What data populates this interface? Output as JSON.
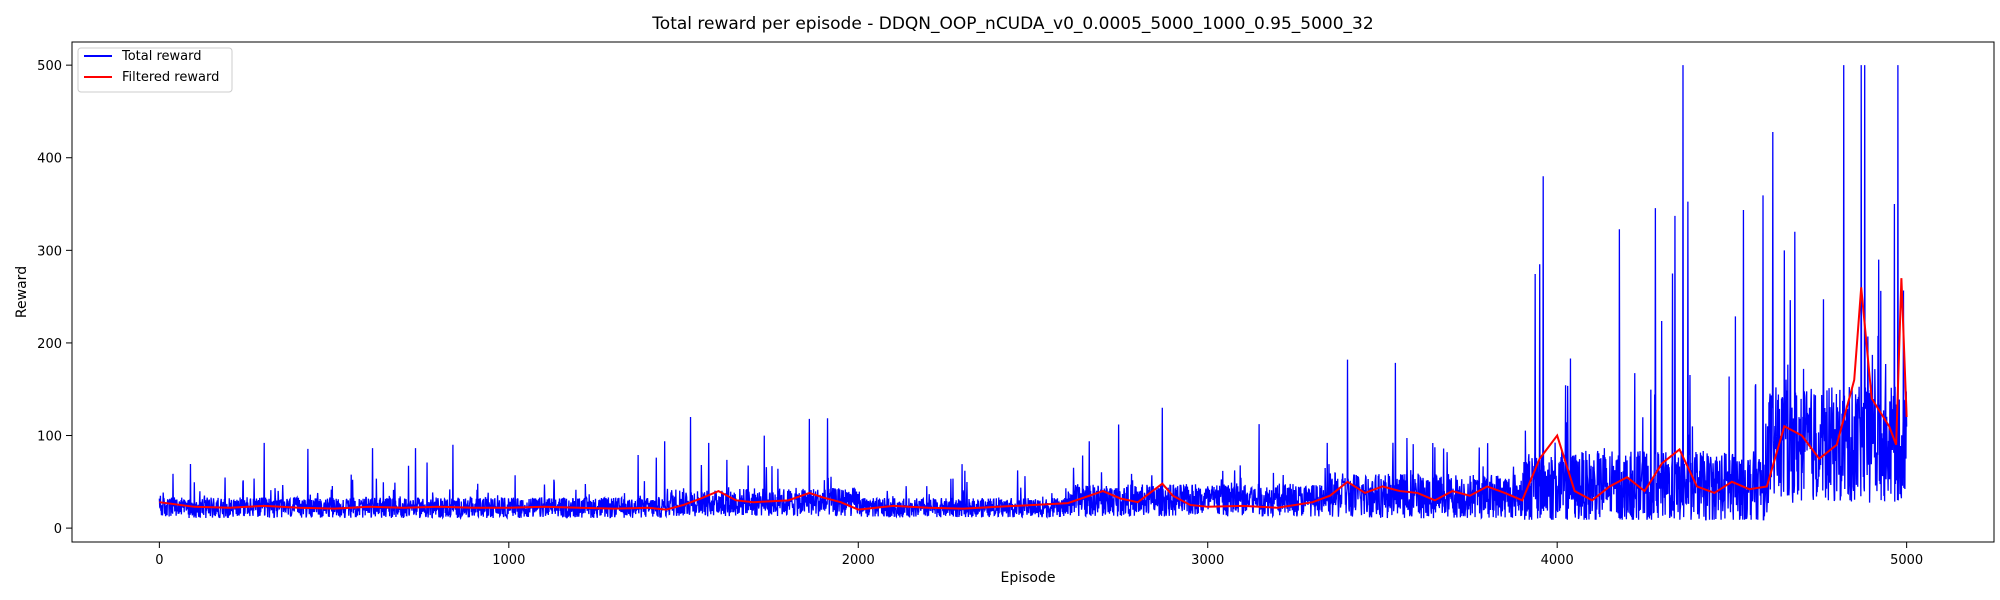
{
  "chart_data": {
    "type": "line",
    "title": "Total reward per episode - DDQN_OOP_nCUDA_v0_0.0005_5000_1000_0.95_5000_32",
    "xlabel": "Episode",
    "ylabel": "Reward",
    "xlim": [
      -250,
      5250
    ],
    "ylim": [
      -15,
      525
    ],
    "xticks": [
      0,
      1000,
      2000,
      3000,
      4000,
      5000
    ],
    "yticks": [
      0,
      100,
      200,
      300,
      400,
      500
    ],
    "grid": false,
    "legend": {
      "placement": "top-left",
      "entries": [
        "Total reward",
        "Filtered reward"
      ]
    },
    "episodes": 5000,
    "series": [
      {
        "name": "Total reward",
        "color": "#0000ff",
        "note_range": "per-episode reward, mostly 10-60 early, larger spikes later, max 500",
        "segments": [
          {
            "from": 0,
            "to": 1450,
            "base": 22,
            "noise": 16,
            "spike_max": 95
          },
          {
            "from": 1450,
            "to": 2000,
            "base": 28,
            "noise": 22,
            "spike_max": 120
          },
          {
            "from": 2000,
            "to": 2600,
            "base": 22,
            "noise": 15,
            "spike_max": 80
          },
          {
            "from": 2600,
            "to": 3350,
            "base": 30,
            "noise": 25,
            "spike_max": 130
          },
          {
            "from": 3350,
            "to": 3900,
            "base": 35,
            "noise": 35,
            "spike_max": 180
          },
          {
            "from": 3900,
            "to": 4600,
            "base": 45,
            "noise": 55,
            "spike_max": 380
          },
          {
            "from": 4600,
            "to": 5000,
            "base": 90,
            "noise": 90,
            "spike_max": 500
          }
        ],
        "peaks": [
          {
            "x": 4360,
            "y": 500
          },
          {
            "x": 4820,
            "y": 500
          },
          {
            "x": 4870,
            "y": 500
          },
          {
            "x": 4880,
            "y": 500
          },
          {
            "x": 4975,
            "y": 500
          },
          {
            "x": 3960,
            "y": 380
          },
          {
            "x": 4965,
            "y": 350
          },
          {
            "x": 4680,
            "y": 320
          },
          {
            "x": 4650,
            "y": 300
          },
          {
            "x": 4920,
            "y": 290
          },
          {
            "x": 3950,
            "y": 285
          },
          {
            "x": 4330,
            "y": 275
          },
          {
            "x": 3400,
            "y": 182
          },
          {
            "x": 2870,
            "y": 130
          },
          {
            "x": 1520,
            "y": 120
          },
          {
            "x": 1860,
            "y": 118
          },
          {
            "x": 300,
            "y": 92
          },
          {
            "x": 840,
            "y": 90
          }
        ]
      },
      {
        "name": "Filtered reward",
        "color": "#ff0000",
        "points": [
          [
            0,
            28
          ],
          [
            100,
            23
          ],
          [
            200,
            22
          ],
          [
            300,
            24
          ],
          [
            400,
            22
          ],
          [
            500,
            21
          ],
          [
            600,
            23
          ],
          [
            700,
            22
          ],
          [
            800,
            23
          ],
          [
            900,
            22
          ],
          [
            1000,
            22
          ],
          [
            1100,
            23
          ],
          [
            1200,
            22
          ],
          [
            1300,
            21
          ],
          [
            1400,
            22
          ],
          [
            1450,
            20
          ],
          [
            1500,
            25
          ],
          [
            1550,
            32
          ],
          [
            1600,
            40
          ],
          [
            1650,
            30
          ],
          [
            1700,
            28
          ],
          [
            1800,
            30
          ],
          [
            1860,
            38
          ],
          [
            1900,
            33
          ],
          [
            1950,
            28
          ],
          [
            2000,
            20
          ],
          [
            2050,
            22
          ],
          [
            2100,
            24
          ],
          [
            2200,
            22
          ],
          [
            2300,
            21
          ],
          [
            2400,
            23
          ],
          [
            2500,
            25
          ],
          [
            2600,
            27
          ],
          [
            2700,
            40
          ],
          [
            2750,
            32
          ],
          [
            2800,
            28
          ],
          [
            2870,
            48
          ],
          [
            2900,
            35
          ],
          [
            2950,
            25
          ],
          [
            3000,
            23
          ],
          [
            3100,
            24
          ],
          [
            3200,
            22
          ],
          [
            3300,
            28
          ],
          [
            3350,
            35
          ],
          [
            3400,
            50
          ],
          [
            3450,
            38
          ],
          [
            3500,
            45
          ],
          [
            3550,
            40
          ],
          [
            3600,
            38
          ],
          [
            3650,
            30
          ],
          [
            3700,
            40
          ],
          [
            3750,
            35
          ],
          [
            3800,
            45
          ],
          [
            3850,
            38
          ],
          [
            3900,
            30
          ],
          [
            3950,
            75
          ],
          [
            4000,
            100
          ],
          [
            4050,
            40
          ],
          [
            4100,
            30
          ],
          [
            4150,
            45
          ],
          [
            4200,
            55
          ],
          [
            4250,
            40
          ],
          [
            4300,
            70
          ],
          [
            4350,
            85
          ],
          [
            4400,
            45
          ],
          [
            4450,
            38
          ],
          [
            4500,
            50
          ],
          [
            4550,
            42
          ],
          [
            4600,
            45
          ],
          [
            4650,
            110
          ],
          [
            4700,
            100
          ],
          [
            4750,
            75
          ],
          [
            4800,
            90
          ],
          [
            4850,
            160
          ],
          [
            4870,
            260
          ],
          [
            4900,
            140
          ],
          [
            4950,
            110
          ],
          [
            4970,
            90
          ],
          [
            4985,
            270
          ],
          [
            5000,
            120
          ]
        ]
      }
    ]
  }
}
